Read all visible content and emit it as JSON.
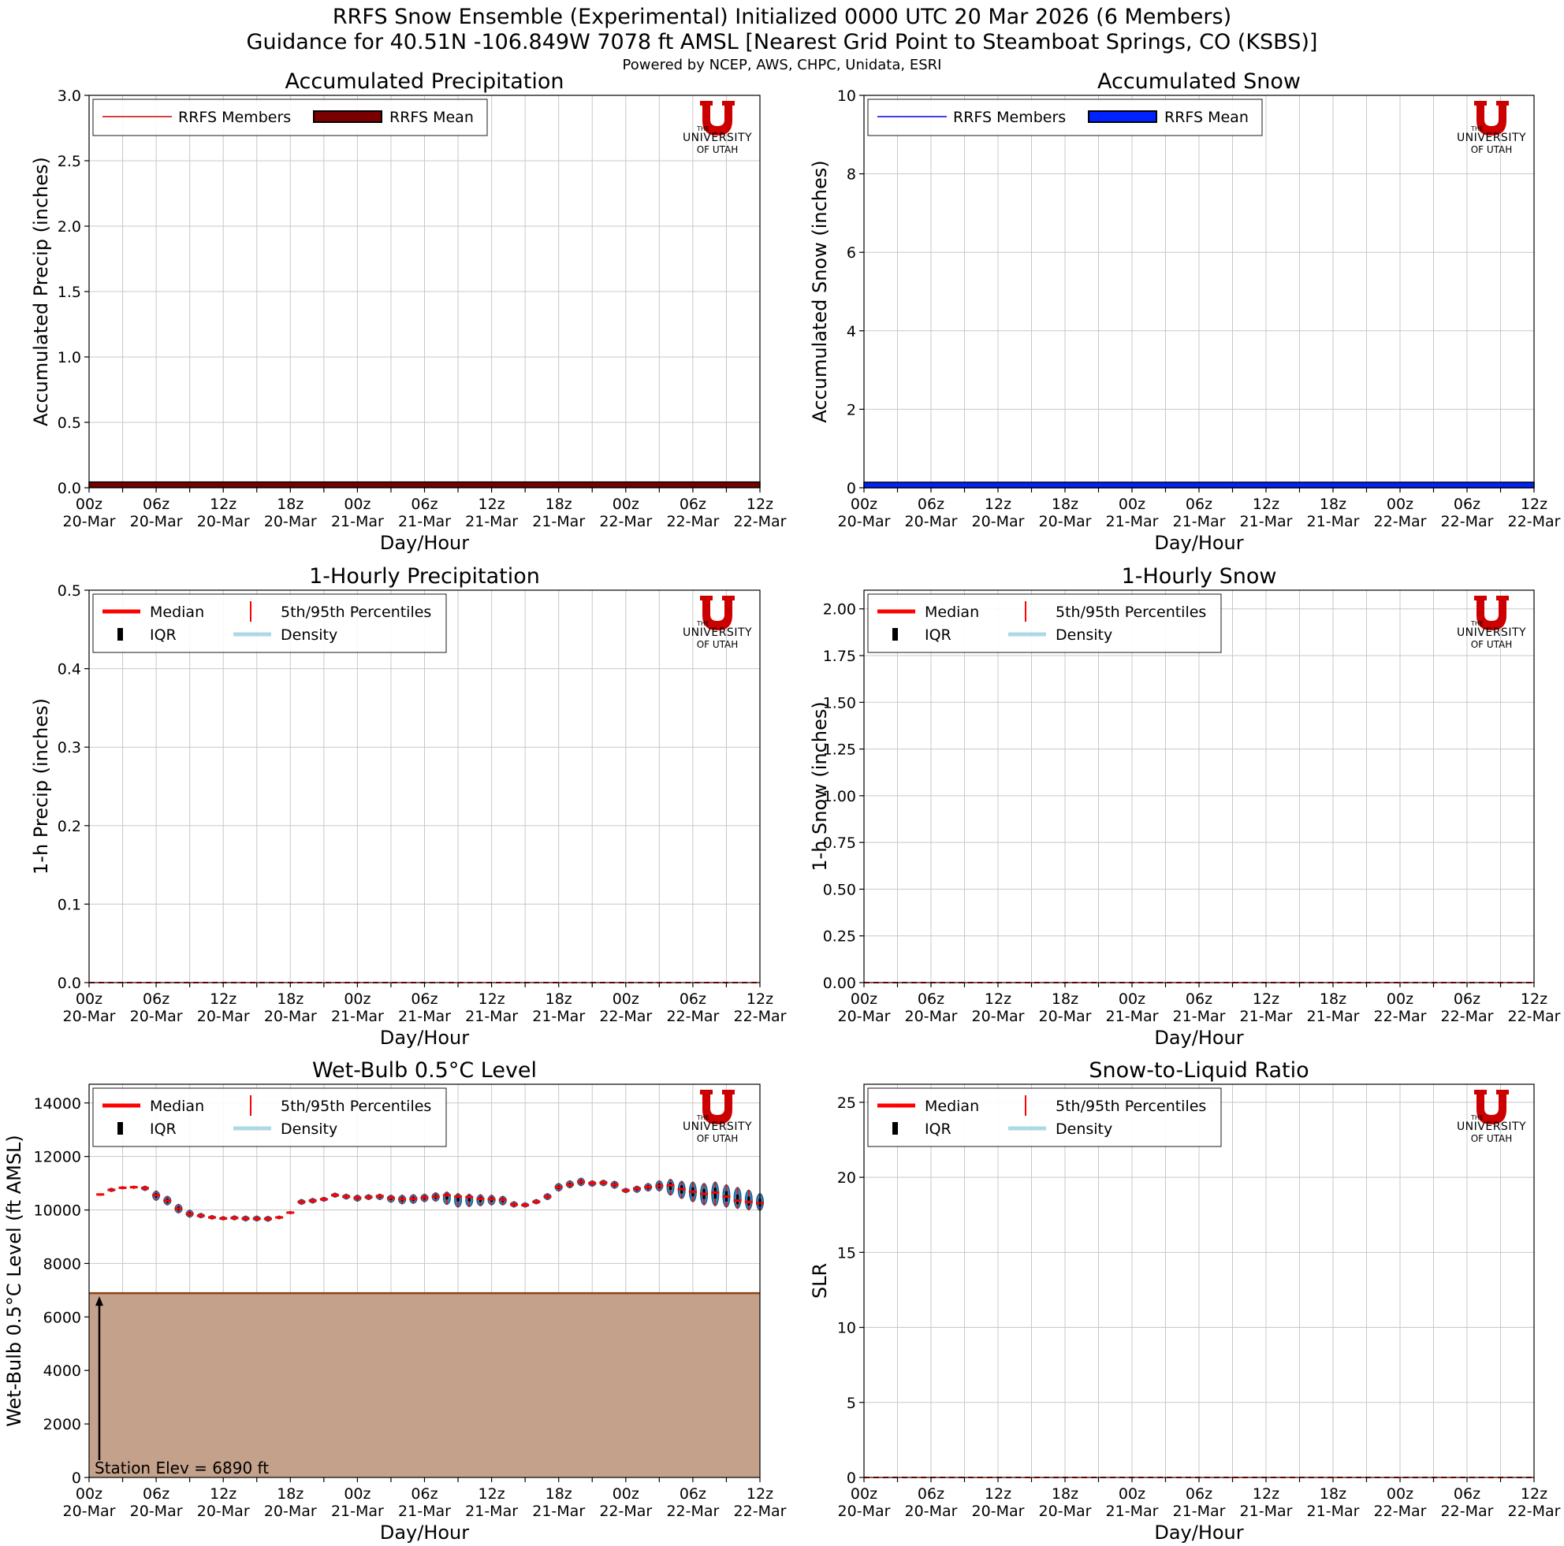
{
  "header": {
    "title_line1": "RRFS Snow Ensemble (Experimental) Initialized 0000 UTC 20 Mar 2026 (6 Members)",
    "title_line2": "Guidance for 40.51N -106.849W 7078 ft AMSL [Nearest Grid Point to Steamboat Springs, CO (KSBS)]",
    "credits": "Powered by NCEP, AWS, CHPC, Unidata, ESRI"
  },
  "logo": {
    "line1": "THE",
    "line2": "UNIVERSITY",
    "line3": "OF UTAH",
    "letter": "U",
    "color": "#cc0000"
  },
  "x_ticks": [
    {
      "hour": 0,
      "top": "00z",
      "bottom": "20-Mar"
    },
    {
      "hour": 6,
      "top": "06z",
      "bottom": "20-Mar"
    },
    {
      "hour": 12,
      "top": "12z",
      "bottom": "20-Mar"
    },
    {
      "hour": 18,
      "top": "18z",
      "bottom": "20-Mar"
    },
    {
      "hour": 24,
      "top": "00z",
      "bottom": "21-Mar"
    },
    {
      "hour": 30,
      "top": "06z",
      "bottom": "21-Mar"
    },
    {
      "hour": 36,
      "top": "12z",
      "bottom": "21-Mar"
    },
    {
      "hour": 42,
      "top": "18z",
      "bottom": "21-Mar"
    },
    {
      "hour": 48,
      "top": "00z",
      "bottom": "22-Mar"
    },
    {
      "hour": 54,
      "top": "06z",
      "bottom": "22-Mar"
    },
    {
      "hour": 60,
      "top": "12z",
      "bottom": "22-Mar"
    }
  ],
  "chart_data": [
    {
      "id": "acc-precip",
      "type": "line",
      "title": "Accumulated Precipitation",
      "xlabel": "Day/Hour",
      "ylabel": "Accumulated Precip (inches)",
      "xlim": [
        0,
        60
      ],
      "ylim": [
        0,
        3.0
      ],
      "yticks": [
        0.0,
        0.5,
        1.0,
        1.5,
        2.0,
        2.5,
        3.0
      ],
      "ytick_labels": [
        "0.0",
        "0.5",
        "1.0",
        "1.5",
        "2.0",
        "2.5",
        "3.0"
      ],
      "grid": true,
      "legend_position": "top-left",
      "legend": [
        {
          "label": "RRFS Members",
          "kind": "line",
          "color": "#cc0000"
        },
        {
          "label": "RRFS Mean",
          "kind": "bar",
          "color": "#7a0000"
        }
      ],
      "series": [
        {
          "name": "RRFS Mean",
          "x": [
            0,
            60
          ],
          "values": [
            0.02,
            0.02
          ]
        }
      ]
    },
    {
      "id": "acc-snow",
      "type": "line",
      "title": "Accumulated Snow",
      "xlabel": "Day/Hour",
      "ylabel": "Accumulated Snow (inches)",
      "xlim": [
        0,
        60
      ],
      "ylim": [
        0,
        10
      ],
      "yticks": [
        0,
        2,
        4,
        6,
        8,
        10
      ],
      "ytick_labels": [
        "0",
        "2",
        "4",
        "6",
        "8",
        "10"
      ],
      "grid": true,
      "legend_position": "top-left",
      "legend": [
        {
          "label": "RRFS Members",
          "kind": "line",
          "color": "#0000ee"
        },
        {
          "label": "RRFS Mean",
          "kind": "bar",
          "color": "#0022ff"
        }
      ],
      "series": [
        {
          "name": "RRFS Mean",
          "x": [
            0,
            60
          ],
          "values": [
            0.06,
            0.06
          ]
        }
      ]
    },
    {
      "id": "hourly-precip",
      "type": "line",
      "title": "1-Hourly Precipitation",
      "xlabel": "Day/Hour",
      "ylabel": "1-h Precip (inches)",
      "xlim": [
        0,
        60
      ],
      "ylim": [
        0,
        0.5
      ],
      "yticks": [
        0.0,
        0.1,
        0.2,
        0.3,
        0.4,
        0.5
      ],
      "ytick_labels": [
        "0.0",
        "0.1",
        "0.2",
        "0.3",
        "0.4",
        "0.5"
      ],
      "grid": true,
      "legend_position": "top-left",
      "legend": [
        {
          "label": "Median",
          "kind": "line",
          "color": "#ff0000"
        },
        {
          "label": "5th/95th Percentiles",
          "kind": "vline",
          "color": "#ff0000"
        },
        {
          "label": "IQR",
          "kind": "box",
          "color": "#000000"
        },
        {
          "label": "Density",
          "kind": "line",
          "color": "#add8e6"
        }
      ],
      "series": [
        {
          "name": "Median",
          "x": [
            0,
            60
          ],
          "values": [
            0.0,
            0.0
          ]
        }
      ]
    },
    {
      "id": "hourly-snow",
      "type": "line",
      "title": "1-Hourly Snow",
      "xlabel": "Day/Hour",
      "ylabel": "1-h Snow (inches)",
      "xlim": [
        0,
        60
      ],
      "ylim": [
        0,
        2.1
      ],
      "yticks": [
        0.0,
        0.25,
        0.5,
        0.75,
        1.0,
        1.25,
        1.5,
        1.75,
        2.0
      ],
      "ytick_labels": [
        "0.00",
        "0.25",
        "0.50",
        "0.75",
        "1.00",
        "1.25",
        "1.50",
        "1.75",
        "2.00"
      ],
      "grid": true,
      "legend_position": "top-left",
      "legend": [
        {
          "label": "Median",
          "kind": "line",
          "color": "#ff0000"
        },
        {
          "label": "5th/95th Percentiles",
          "kind": "vline",
          "color": "#ff0000"
        },
        {
          "label": "IQR",
          "kind": "box",
          "color": "#000000"
        },
        {
          "label": "Density",
          "kind": "line",
          "color": "#add8e6"
        }
      ],
      "series": [
        {
          "name": "Median",
          "x": [
            0,
            60
          ],
          "values": [
            0.0,
            0.0
          ]
        }
      ]
    },
    {
      "id": "wetbulb",
      "type": "scatter",
      "title": "Wet-Bulb 0.5°C Level",
      "xlabel": "Day/Hour",
      "ylabel": "Wet-Bulb 0.5°C Level (ft AMSL)",
      "xlim": [
        0,
        60
      ],
      "ylim": [
        0,
        14700
      ],
      "yticks": [
        0,
        2000,
        4000,
        6000,
        8000,
        10000,
        12000,
        14000
      ],
      "ytick_labels": [
        "0",
        "2000",
        "4000",
        "6000",
        "8000",
        "10000",
        "12000",
        "14000"
      ],
      "grid": true,
      "legend_position": "top-left",
      "legend": [
        {
          "label": "Median",
          "kind": "line",
          "color": "#ff0000"
        },
        {
          "label": "5th/95th Percentiles",
          "kind": "vline",
          "color": "#ff0000"
        },
        {
          "label": "IQR",
          "kind": "box",
          "color": "#000000"
        },
        {
          "label": "Density",
          "kind": "line",
          "color": "#add8e6"
        }
      ],
      "station_elev": 6890,
      "station_label": "Station Elev = 6890 ft",
      "terrain_color": "#c4a18a",
      "terrain_edge": "#8b4513",
      "series": [
        {
          "name": "Median",
          "x": [
            1,
            2,
            3,
            4,
            5,
            6,
            7,
            8,
            9,
            10,
            11,
            12,
            13,
            14,
            15,
            16,
            17,
            18,
            19,
            20,
            21,
            22,
            23,
            24,
            25,
            26,
            27,
            28,
            29,
            30,
            31,
            32,
            33,
            34,
            35,
            36,
            37,
            38,
            39,
            40,
            41,
            42,
            43,
            44,
            45,
            46,
            47,
            48,
            49,
            50,
            51,
            52,
            53,
            54,
            55,
            56,
            57,
            58,
            59,
            60
          ],
          "values": [
            10580,
            10750,
            10830,
            10850,
            10820,
            10550,
            10350,
            10050,
            9850,
            9780,
            9720,
            9680,
            9700,
            9680,
            9670,
            9670,
            9720,
            9900,
            10300,
            10350,
            10400,
            10550,
            10500,
            10450,
            10480,
            10520,
            10450,
            10400,
            10420,
            10460,
            10500,
            10550,
            10500,
            10480,
            10420,
            10400,
            10380,
            10200,
            10180,
            10300,
            10500,
            10850,
            10950,
            11050,
            11000,
            11020,
            10950,
            10730,
            10800,
            10850,
            10900,
            10920,
            10780,
            10680,
            10600,
            10650,
            10500,
            10350,
            10300,
            10250
          ],
          "low": [
            10550,
            10680,
            10780,
            10800,
            10720,
            10350,
            10180,
            9880,
            9720,
            9700,
            9650,
            9620,
            9620,
            9580,
            9580,
            9570,
            9660,
            9850,
            10200,
            10250,
            10320,
            10470,
            10400,
            10320,
            10380,
            10380,
            10280,
            10220,
            10240,
            10300,
            10320,
            10200,
            10100,
            10120,
            10150,
            10180,
            10180,
            10100,
            10100,
            10220,
            10380,
            10700,
            10820,
            10900,
            10880,
            10900,
            10800,
            10640,
            10650,
            10700,
            10700,
            10550,
            10420,
            10300,
            10180,
            10150,
            10100,
            10050,
            10000,
            9980
          ],
          "high": [
            10610,
            10820,
            10880,
            10900,
            10900,
            10720,
            10520,
            10220,
            10000,
            9880,
            9800,
            9760,
            9790,
            9780,
            9780,
            9770,
            9780,
            9950,
            10400,
            10440,
            10480,
            10640,
            10600,
            10560,
            10580,
            10600,
            10560,
            10560,
            10580,
            10600,
            10650,
            10680,
            10620,
            10600,
            10580,
            10560,
            10520,
            10320,
            10280,
            10400,
            10620,
            11000,
            11100,
            11200,
            11100,
            11120,
            11080,
            10820,
            10900,
            11000,
            11100,
            11150,
            11080,
            11050,
            11000,
            11050,
            10950,
            10850,
            10750,
            10620
          ]
        }
      ]
    },
    {
      "id": "slr",
      "type": "line",
      "title": "Snow-to-Liquid Ratio",
      "xlabel": "Day/Hour",
      "ylabel": "SLR",
      "xlim": [
        0,
        60
      ],
      "ylim": [
        0,
        26.2
      ],
      "yticks": [
        0,
        5,
        10,
        15,
        20,
        25
      ],
      "ytick_labels": [
        "0",
        "5",
        "10",
        "15",
        "20",
        "25"
      ],
      "grid": true,
      "legend_position": "top-left",
      "legend": [
        {
          "label": "Median",
          "kind": "line",
          "color": "#ff0000"
        },
        {
          "label": "5th/95th Percentiles",
          "kind": "vline",
          "color": "#ff0000"
        },
        {
          "label": "IQR",
          "kind": "box",
          "color": "#000000"
        },
        {
          "label": "Density",
          "kind": "line",
          "color": "#add8e6"
        }
      ],
      "series": [
        {
          "name": "Median",
          "x": [
            0,
            60
          ],
          "values": [
            0.0,
            0.0
          ]
        }
      ]
    }
  ]
}
